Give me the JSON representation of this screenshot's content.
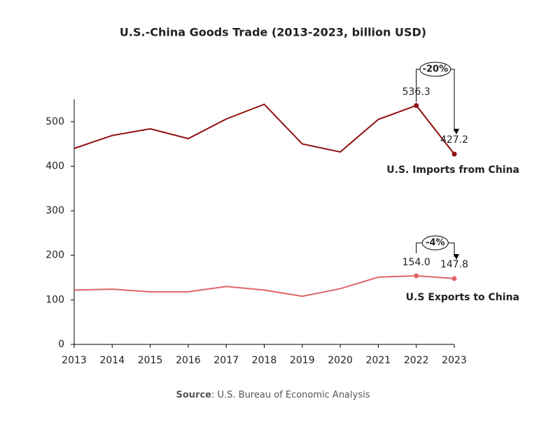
{
  "chart_data": {
    "type": "line",
    "title": "U.S.-China Goods Trade (2013-2023, billion USD)",
    "categories": [
      "2013",
      "2014",
      "2015",
      "2016",
      "2017",
      "2018",
      "2019",
      "2020",
      "2021",
      "2022",
      "2023"
    ],
    "series": [
      {
        "name": "U.S. Imports from China",
        "color": "#8f1010",
        "values": [
          440,
          469,
          484,
          462,
          506,
          539,
          450,
          432,
          505,
          536.3,
          427.2
        ],
        "value_labels": [
          null,
          null,
          null,
          null,
          null,
          null,
          null,
          null,
          null,
          "536.3",
          "427.2"
        ]
      },
      {
        "name": "U.S Exports to China",
        "color": "#e06666",
        "values": [
          122,
          124,
          118,
          118,
          130,
          122,
          108,
          125,
          151,
          154.0,
          147.8
        ],
        "value_labels": [
          null,
          null,
          null,
          null,
          null,
          null,
          null,
          null,
          null,
          "154.0",
          "147.8"
        ]
      }
    ],
    "annotations": [
      {
        "text": "-20%",
        "series": 0
      },
      {
        "text": "-4%",
        "series": 1
      }
    ],
    "ylim": [
      0,
      550
    ],
    "yticks": [
      0,
      100,
      200,
      300,
      400,
      500
    ],
    "source": {
      "label": "Source",
      "text": ": U.S. Bureau of Economic Analysis"
    }
  }
}
